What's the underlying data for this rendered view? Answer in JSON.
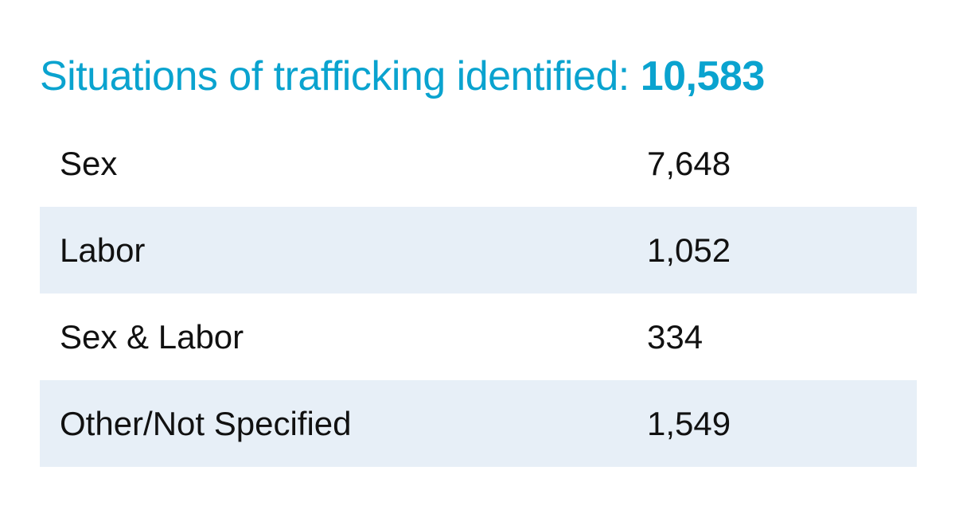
{
  "header": {
    "title": "Situations of trafficking identified:",
    "total": "10,583"
  },
  "table": {
    "rows": [
      [
        "Sex",
        "7,648"
      ],
      [
        "Labor",
        "1,052"
      ],
      [
        "Sex & Labor",
        "334"
      ],
      [
        "Other/Not Specified",
        "1,549"
      ]
    ]
  }
}
